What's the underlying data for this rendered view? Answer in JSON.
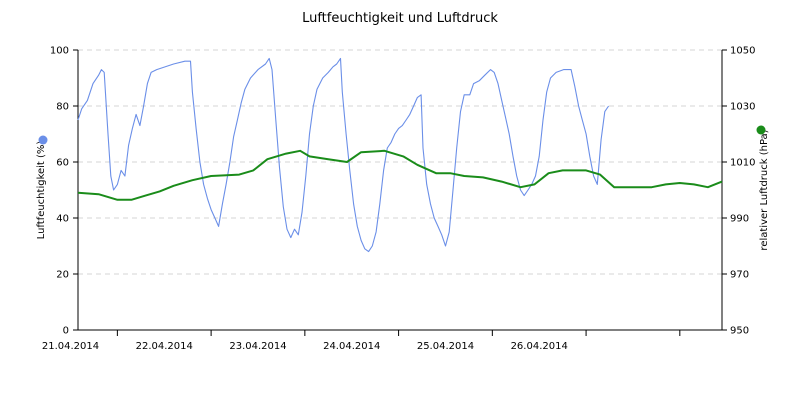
{
  "chart_data": {
    "type": "line",
    "title": "Luftfeuchtigkeit und Luftdruck",
    "x_tick_labels": [
      "21.04.2014",
      "22.04.2014",
      "23.04.2014",
      "24.04.2014",
      "25.04.2014",
      "26.04.2014"
    ],
    "x_range_days": [
      20.58,
      27.45
    ],
    "y_left": {
      "label": "Luftfeuchtigkeit (%)",
      "range": [
        0,
        100
      ],
      "ticks": [
        "0",
        "20",
        "40",
        "60",
        "80",
        "100"
      ]
    },
    "y_right": {
      "label": "relativer Luftdruck (hPa)",
      "range": [
        950,
        1050
      ],
      "ticks": [
        "950",
        "970",
        "990",
        "1010",
        "1030",
        "1050"
      ]
    },
    "grid": "horizontal dashed",
    "legend": "colored dots beside each y-axis label",
    "series": [
      {
        "axis": "left",
        "color": "#6b8fe8",
        "points": [
          [
            20.58,
            75
          ],
          [
            20.62,
            79
          ],
          [
            20.68,
            82
          ],
          [
            20.74,
            88
          ],
          [
            20.8,
            91
          ],
          [
            20.83,
            93
          ],
          [
            20.86,
            92
          ],
          [
            20.9,
            70
          ],
          [
            20.93,
            55
          ],
          [
            20.96,
            50
          ],
          [
            21.0,
            52
          ],
          [
            21.04,
            57
          ],
          [
            21.08,
            55
          ],
          [
            21.12,
            66
          ],
          [
            21.16,
            72
          ],
          [
            21.2,
            77
          ],
          [
            21.24,
            73
          ],
          [
            21.28,
            80
          ],
          [
            21.32,
            88
          ],
          [
            21.36,
            92
          ],
          [
            21.42,
            93
          ],
          [
            21.6,
            95
          ],
          [
            21.72,
            96
          ],
          [
            21.78,
            96
          ],
          [
            21.8,
            85
          ],
          [
            21.84,
            72
          ],
          [
            21.88,
            60
          ],
          [
            21.92,
            52
          ],
          [
            21.96,
            47
          ],
          [
            22.0,
            43
          ],
          [
            22.04,
            40
          ],
          [
            22.08,
            37
          ],
          [
            22.12,
            45
          ],
          [
            22.16,
            52
          ],
          [
            22.2,
            60
          ],
          [
            22.24,
            69
          ],
          [
            22.28,
            75
          ],
          [
            22.32,
            81
          ],
          [
            22.36,
            86
          ],
          [
            22.42,
            90
          ],
          [
            22.5,
            93
          ],
          [
            22.58,
            95
          ],
          [
            22.62,
            97
          ],
          [
            22.65,
            93
          ],
          [
            22.69,
            75
          ],
          [
            22.73,
            58
          ],
          [
            22.77,
            44
          ],
          [
            22.81,
            36
          ],
          [
            22.85,
            33
          ],
          [
            22.89,
            36
          ],
          [
            22.93,
            34
          ],
          [
            22.97,
            42
          ],
          [
            23.01,
            55
          ],
          [
            23.05,
            70
          ],
          [
            23.09,
            80
          ],
          [
            23.13,
            86
          ],
          [
            23.19,
            90
          ],
          [
            23.25,
            92
          ],
          [
            23.3,
            94
          ],
          [
            23.34,
            95
          ],
          [
            23.38,
            97
          ],
          [
            23.4,
            85
          ],
          [
            23.44,
            70
          ],
          [
            23.48,
            57
          ],
          [
            23.52,
            45
          ],
          [
            23.56,
            37
          ],
          [
            23.6,
            32
          ],
          [
            23.64,
            29
          ],
          [
            23.68,
            28
          ],
          [
            23.72,
            30
          ],
          [
            23.76,
            35
          ],
          [
            23.8,
            45
          ],
          [
            23.84,
            57
          ],
          [
            23.88,
            65
          ],
          [
            23.92,
            67
          ],
          [
            23.96,
            70
          ],
          [
            24.0,
            72
          ],
          [
            24.04,
            73
          ],
          [
            24.08,
            75
          ],
          [
            24.12,
            77
          ],
          [
            24.16,
            80
          ],
          [
            24.2,
            83
          ],
          [
            24.24,
            84
          ],
          [
            24.26,
            65
          ],
          [
            24.3,
            52
          ],
          [
            24.34,
            45
          ],
          [
            24.38,
            40
          ],
          [
            24.42,
            37
          ],
          [
            24.46,
            34
          ],
          [
            24.5,
            30
          ],
          [
            24.54,
            35
          ],
          [
            24.58,
            50
          ],
          [
            24.62,
            65
          ],
          [
            24.66,
            78
          ],
          [
            24.7,
            84
          ],
          [
            24.76,
            84
          ],
          [
            24.8,
            88
          ],
          [
            24.86,
            89
          ],
          [
            24.92,
            91
          ],
          [
            24.98,
            93
          ],
          [
            25.02,
            92
          ],
          [
            25.06,
            88
          ],
          [
            25.1,
            82
          ],
          [
            25.14,
            76
          ],
          [
            25.18,
            70
          ],
          [
            25.22,
            62
          ],
          [
            25.26,
            55
          ],
          [
            25.3,
            50
          ],
          [
            25.34,
            48
          ],
          [
            25.38,
            50
          ],
          [
            25.42,
            52
          ],
          [
            25.46,
            55
          ],
          [
            25.5,
            62
          ],
          [
            25.54,
            75
          ],
          [
            25.58,
            85
          ],
          [
            25.62,
            90
          ],
          [
            25.68,
            92
          ],
          [
            25.76,
            93
          ],
          [
            25.84,
            93
          ],
          [
            25.88,
            87
          ],
          [
            25.92,
            80
          ],
          [
            25.96,
            75
          ],
          [
            26.0,
            70
          ],
          [
            26.04,
            62
          ],
          [
            26.08,
            55
          ],
          [
            26.12,
            52
          ],
          [
            26.16,
            68
          ],
          [
            26.2,
            78
          ],
          [
            26.24,
            80
          ]
        ]
      },
      {
        "axis": "right",
        "color": "#1a8c1a",
        "points": [
          [
            20.58,
            999
          ],
          [
            20.8,
            998.5
          ],
          [
            21.0,
            996.5
          ],
          [
            21.15,
            996.5
          ],
          [
            21.3,
            998
          ],
          [
            21.45,
            999.5
          ],
          [
            21.6,
            1001.5
          ],
          [
            21.8,
            1003.5
          ],
          [
            22.0,
            1005
          ],
          [
            22.3,
            1005.5
          ],
          [
            22.45,
            1007
          ],
          [
            22.6,
            1011
          ],
          [
            22.8,
            1013
          ],
          [
            22.95,
            1014
          ],
          [
            23.05,
            1012
          ],
          [
            23.25,
            1011
          ],
          [
            23.45,
            1010
          ],
          [
            23.6,
            1013.5
          ],
          [
            23.85,
            1014
          ],
          [
            24.05,
            1012
          ],
          [
            24.2,
            1009
          ],
          [
            24.4,
            1006
          ],
          [
            24.55,
            1006
          ],
          [
            24.7,
            1005
          ],
          [
            24.9,
            1004.5
          ],
          [
            25.1,
            1003
          ],
          [
            25.3,
            1001
          ],
          [
            25.45,
            1002
          ],
          [
            25.6,
            1006
          ],
          [
            25.75,
            1007
          ],
          [
            26.0,
            1007
          ],
          [
            26.15,
            1005.5
          ],
          [
            26.3,
            1001
          ],
          [
            26.5,
            1001
          ],
          [
            26.7,
            1001
          ],
          [
            26.85,
            1002
          ],
          [
            27.0,
            1002.5
          ],
          [
            27.15,
            1002
          ],
          [
            27.3,
            1001
          ],
          [
            27.45,
            1003
          ]
        ]
      }
    ]
  }
}
